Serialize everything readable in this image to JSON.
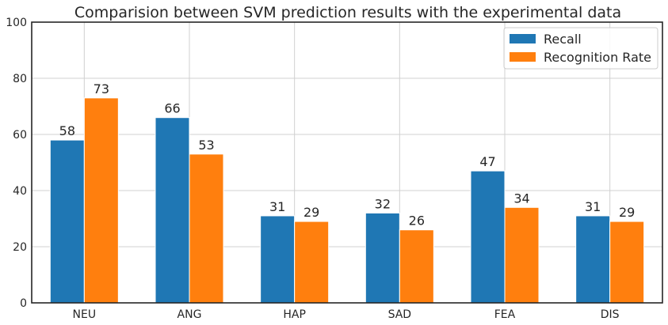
{
  "chart_data": {
    "type": "bar",
    "title": "Comparision between SVM prediction results with the experimental data",
    "xlabel": "",
    "ylabel": "",
    "categories": [
      "NEU",
      "ANG",
      "HAP",
      "SAD",
      "FEA",
      "DIS"
    ],
    "series": [
      {
        "name": "Recall",
        "values": [
          58,
          66,
          31,
          32,
          47,
          31
        ],
        "color": "#1f77b4"
      },
      {
        "name": "Recognition Rate",
        "values": [
          73,
          53,
          29,
          26,
          34,
          29
        ],
        "color": "#ff7f0e"
      }
    ],
    "ylim": [
      0,
      100
    ],
    "yticks": [
      0,
      20,
      40,
      60,
      80,
      100
    ],
    "grid": true,
    "legend_position": "top-right"
  }
}
